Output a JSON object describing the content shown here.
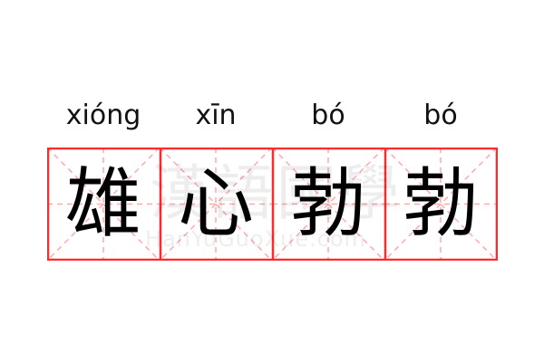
{
  "watermark": {
    "characters": "漢語國學",
    "site": "HanYuGuoXue.com"
  },
  "colors": {
    "grid_border": "#ff2a2a",
    "guide_lines": "#ffaaaa",
    "text": "#000000"
  },
  "words": [
    {
      "pinyin": "xióng",
      "char": "雄"
    },
    {
      "pinyin": "xīn",
      "char": "心"
    },
    {
      "pinyin": "bó",
      "char": "勃"
    },
    {
      "pinyin": "bó",
      "char": "勃"
    }
  ]
}
